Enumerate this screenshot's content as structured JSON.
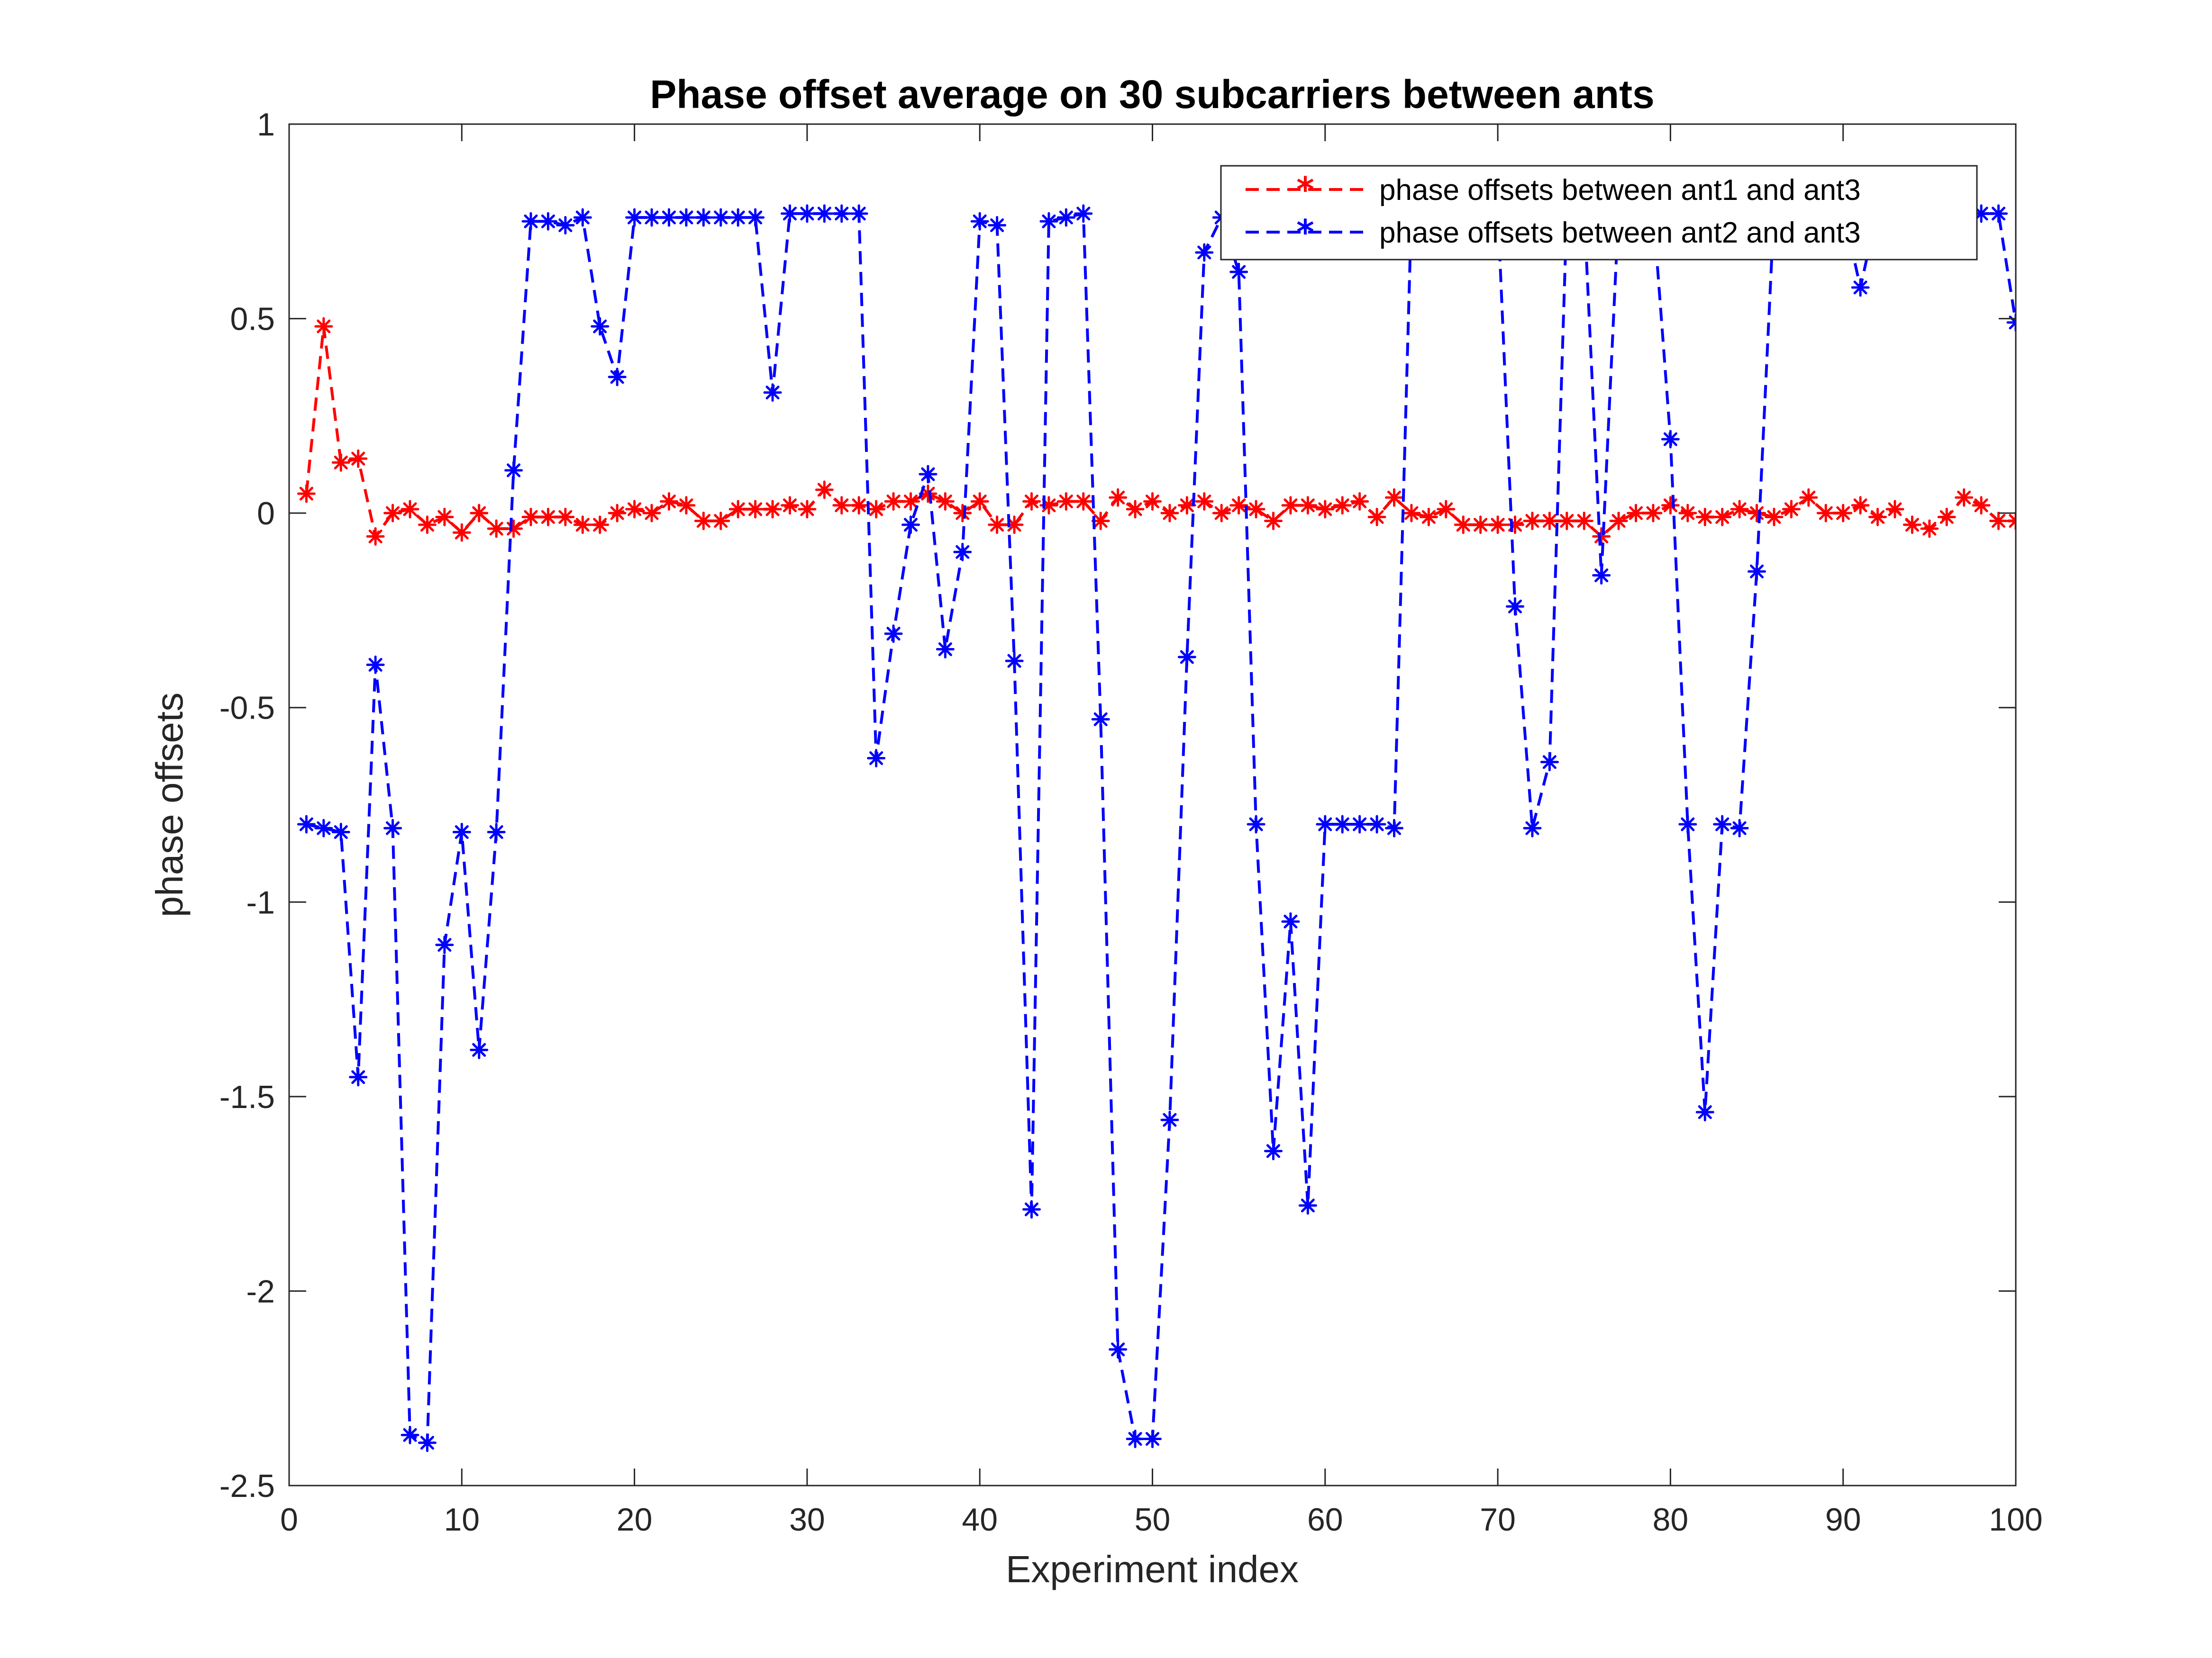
{
  "chart_data": {
    "type": "line",
    "title": "Phase offset average on 30 subcarriers between ants",
    "xlabel": "Experiment index",
    "ylabel": "phase offsets",
    "xlim": [
      0,
      100
    ],
    "ylim": [
      -2.5,
      1
    ],
    "xticks": [
      "0",
      "10",
      "20",
      "30",
      "40",
      "50",
      "60",
      "70",
      "80",
      "90",
      "100"
    ],
    "yticks": [
      "1",
      "0.5",
      "0",
      "-0.5",
      "-1",
      "-1.5",
      "-2",
      "-2.5"
    ],
    "grid": false,
    "legend_position": "top-right",
    "marker": "asterisk",
    "line_style": "dashed",
    "x": [
      1,
      2,
      3,
      4,
      5,
      6,
      7,
      8,
      9,
      10,
      11,
      12,
      13,
      14,
      15,
      16,
      17,
      18,
      19,
      20,
      21,
      22,
      23,
      24,
      25,
      26,
      27,
      28,
      29,
      30,
      31,
      32,
      33,
      34,
      35,
      36,
      37,
      38,
      39,
      40,
      41,
      42,
      43,
      44,
      45,
      46,
      47,
      48,
      49,
      50,
      51,
      52,
      53,
      54,
      55,
      56,
      57,
      58,
      59,
      60,
      61,
      62,
      63,
      64,
      65,
      66,
      67,
      68,
      69,
      70,
      71,
      72,
      73,
      74,
      75,
      76,
      77,
      78,
      79,
      80,
      81,
      82,
      83,
      84,
      85,
      86,
      87,
      88,
      89,
      90,
      91,
      92,
      93,
      94,
      95,
      96,
      97,
      98,
      99,
      100
    ],
    "series": [
      {
        "name": "phase offsets between ant1 and ant3",
        "color": "#ff0000",
        "values": [
          0.05,
          0.48,
          0.13,
          0.14,
          -0.06,
          0.0,
          0.01,
          -0.03,
          -0.01,
          -0.05,
          0.0,
          -0.04,
          -0.04,
          -0.01,
          -0.01,
          -0.01,
          -0.03,
          -0.03,
          0.0,
          0.01,
          0.0,
          0.03,
          0.02,
          -0.02,
          -0.02,
          0.01,
          0.01,
          0.01,
          0.02,
          0.01,
          0.06,
          0.02,
          0.02,
          0.01,
          0.03,
          0.03,
          0.05,
          0.03,
          0.0,
          0.03,
          -0.03,
          -0.03,
          0.03,
          0.02,
          0.03,
          0.03,
          -0.02,
          0.04,
          0.01,
          0.03,
          0.0,
          0.02,
          0.03,
          0.0,
          0.02,
          0.01,
          -0.02,
          0.02,
          0.02,
          0.01,
          0.02,
          0.03,
          -0.01,
          0.04,
          0.0,
          -0.01,
          0.01,
          -0.03,
          -0.03,
          -0.03,
          -0.03,
          -0.02,
          -0.02,
          -0.02,
          -0.02,
          -0.06,
          -0.02,
          0.0,
          0.0,
          0.02,
          0.0,
          -0.01,
          -0.01,
          0.01,
          0.0,
          -0.01,
          0.01,
          0.04,
          0.0,
          0.0,
          0.02,
          -0.01,
          0.01,
          -0.03,
          -0.04,
          -0.01,
          0.04,
          0.02,
          -0.02,
          -0.02
        ]
      },
      {
        "name": "phase offsets between ant2 and ant3",
        "color": "#0000ff",
        "values": [
          -0.8,
          -0.81,
          -0.82,
          -1.45,
          -0.39,
          -0.81,
          -2.37,
          -2.39,
          -1.11,
          -0.82,
          -1.38,
          -0.82,
          0.11,
          0.75,
          0.75,
          0.74,
          0.76,
          0.48,
          0.35,
          0.76,
          0.76,
          0.76,
          0.76,
          0.76,
          0.76,
          0.76,
          0.76,
          0.31,
          0.77,
          0.77,
          0.77,
          0.77,
          0.77,
          -0.63,
          -0.31,
          -0.03,
          0.1,
          -0.35,
          -0.1,
          0.75,
          0.74,
          -0.38,
          -1.79,
          0.75,
          0.76,
          0.77,
          -0.53,
          -2.15,
          -2.38,
          -2.38,
          -1.56,
          -0.37,
          0.67,
          0.76,
          0.62,
          -0.8,
          -1.64,
          -1.05,
          -1.78,
          -0.8,
          -0.8,
          -0.8,
          -0.8,
          -0.81,
          0.78,
          0.78,
          0.78,
          0.78,
          0.78,
          0.78,
          -0.24,
          -0.81,
          -0.64,
          0.78,
          0.78,
          -0.16,
          0.78,
          0.78,
          0.78,
          0.19,
          -0.8,
          -1.54,
          -0.8,
          -0.81,
          -0.15,
          0.78,
          0.78,
          0.78,
          0.78,
          0.78,
          0.58,
          0.78,
          0.78,
          0.78,
          0.78,
          0.78,
          0.78,
          0.77,
          0.77,
          0.49
        ]
      }
    ]
  }
}
